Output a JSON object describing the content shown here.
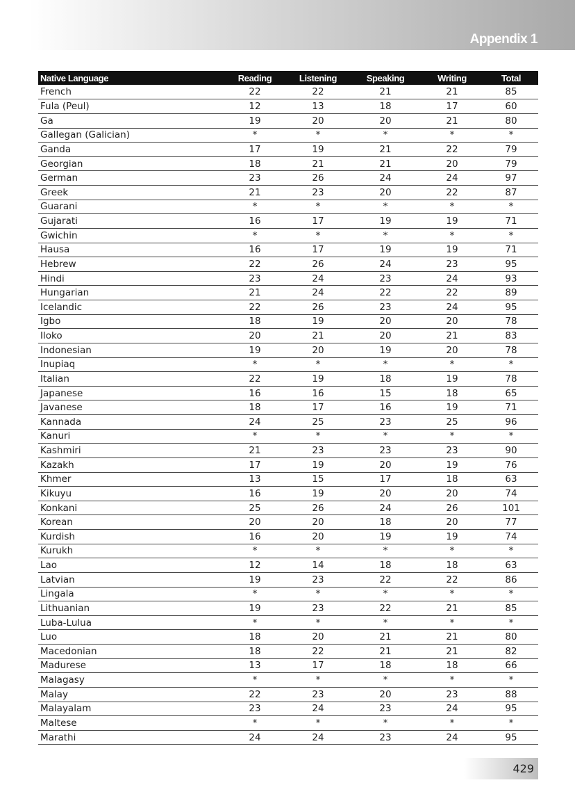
{
  "header": {
    "title": "Appendix 1"
  },
  "table": {
    "columns": [
      "Native Language",
      "Reading",
      "Listening",
      "Speaking",
      "Writing",
      "Total"
    ],
    "rows": [
      [
        "French",
        22,
        22,
        21,
        21,
        85
      ],
      [
        "Fula (Peul)",
        12,
        13,
        18,
        17,
        60
      ],
      [
        "Ga",
        19,
        20,
        20,
        21,
        80
      ],
      [
        "Gallegan (Galician)",
        "*",
        "*",
        "*",
        "*",
        "*"
      ],
      [
        "Ganda",
        17,
        19,
        21,
        22,
        79
      ],
      [
        "Georgian",
        18,
        21,
        21,
        20,
        79
      ],
      [
        "German",
        23,
        26,
        24,
        24,
        97
      ],
      [
        "Greek",
        21,
        23,
        20,
        22,
        87
      ],
      [
        "Guarani",
        "*",
        "*",
        "*",
        "*",
        "*"
      ],
      [
        "Gujarati",
        16,
        17,
        19,
        19,
        71
      ],
      [
        "Gwichin",
        "*",
        "*",
        "*",
        "*",
        "*"
      ],
      [
        "Hausa",
        16,
        17,
        19,
        19,
        71
      ],
      [
        "Hebrew",
        22,
        26,
        24,
        23,
        95
      ],
      [
        "Hindi",
        23,
        24,
        23,
        24,
        93
      ],
      [
        "Hungarian",
        21,
        24,
        22,
        22,
        89
      ],
      [
        "Icelandic",
        22,
        26,
        23,
        24,
        95
      ],
      [
        "Igbo",
        18,
        19,
        20,
        20,
        78
      ],
      [
        "Iloko",
        20,
        21,
        20,
        21,
        83
      ],
      [
        "Indonesian",
        19,
        20,
        19,
        20,
        78
      ],
      [
        "Inupiaq",
        "*",
        "*",
        "*",
        "*",
        "*"
      ],
      [
        "Italian",
        22,
        19,
        18,
        19,
        78
      ],
      [
        "Japanese",
        16,
        16,
        15,
        18,
        65
      ],
      [
        "Javanese",
        18,
        17,
        16,
        19,
        71
      ],
      [
        "Kannada",
        24,
        25,
        23,
        25,
        96
      ],
      [
        "Kanuri",
        "*",
        "*",
        "*",
        "*",
        "*"
      ],
      [
        "Kashmiri",
        21,
        23,
        23,
        23,
        90
      ],
      [
        "Kazakh",
        17,
        19,
        20,
        19,
        76
      ],
      [
        "Khmer",
        13,
        15,
        17,
        18,
        63
      ],
      [
        "Kikuyu",
        16,
        19,
        20,
        20,
        74
      ],
      [
        "Konkani",
        25,
        26,
        24,
        26,
        101
      ],
      [
        "Korean",
        20,
        20,
        18,
        20,
        77
      ],
      [
        "Kurdish",
        16,
        20,
        19,
        19,
        74
      ],
      [
        "Kurukh",
        "*",
        "*",
        "*",
        "*",
        "*"
      ],
      [
        "Lao",
        12,
        14,
        18,
        18,
        63
      ],
      [
        "Latvian",
        19,
        23,
        22,
        22,
        86
      ],
      [
        "Lingala",
        "*",
        "*",
        "*",
        "*",
        "*"
      ],
      [
        "Lithuanian",
        19,
        23,
        22,
        21,
        85
      ],
      [
        "Luba-Lulua",
        "*",
        "*",
        "*",
        "*",
        "*"
      ],
      [
        "Luo",
        18,
        20,
        21,
        21,
        80
      ],
      [
        "Macedonian",
        18,
        22,
        21,
        21,
        82
      ],
      [
        "Madurese",
        13,
        17,
        18,
        18,
        66
      ],
      [
        "Malagasy",
        "*",
        "*",
        "*",
        "*",
        "*"
      ],
      [
        "Malay",
        22,
        23,
        20,
        23,
        88
      ],
      [
        "Malayalam",
        23,
        24,
        23,
        24,
        95
      ],
      [
        "Maltese",
        "*",
        "*",
        "*",
        "*",
        "*"
      ],
      [
        "Marathi",
        24,
        24,
        23,
        24,
        95
      ]
    ]
  },
  "footer": {
    "page_number": "429"
  }
}
